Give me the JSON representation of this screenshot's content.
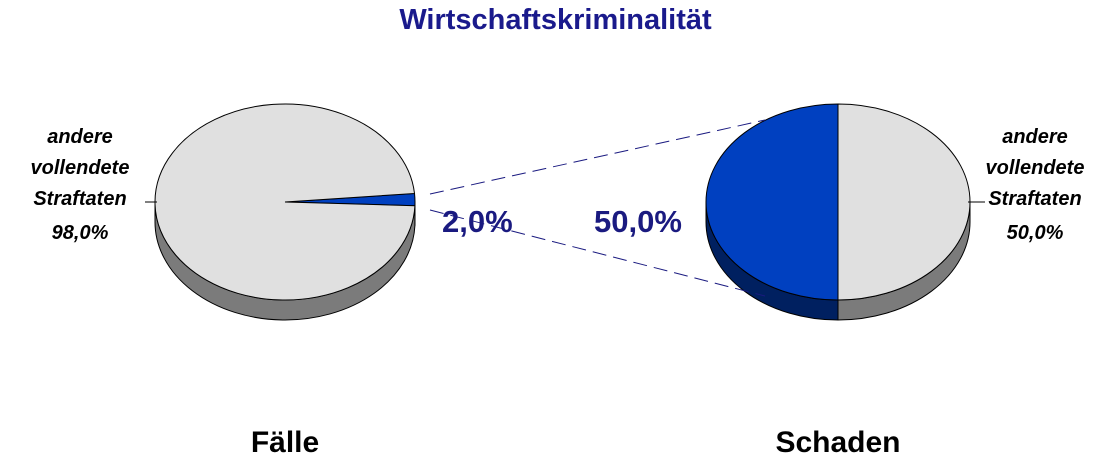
{
  "title": "Wirtschaftskriminalität",
  "chart_data": [
    {
      "type": "pie",
      "title": "Fälle",
      "categories": [
        null,
        "andere vollendete Straftaten"
      ],
      "values": [
        2.0,
        98.0
      ],
      "value_labels": [
        "2,0%",
        "98,0%"
      ],
      "colors": [
        "#0040c0",
        "#e0e0e0"
      ]
    },
    {
      "type": "pie",
      "title": "Schaden",
      "categories": [
        null,
        "andere vollendete Straftaten"
      ],
      "values": [
        50.0,
        50.0
      ],
      "value_labels": [
        "50,0%",
        "50,0%"
      ],
      "colors": [
        "#0040c0",
        "#e0e0e0"
      ]
    }
  ]
}
